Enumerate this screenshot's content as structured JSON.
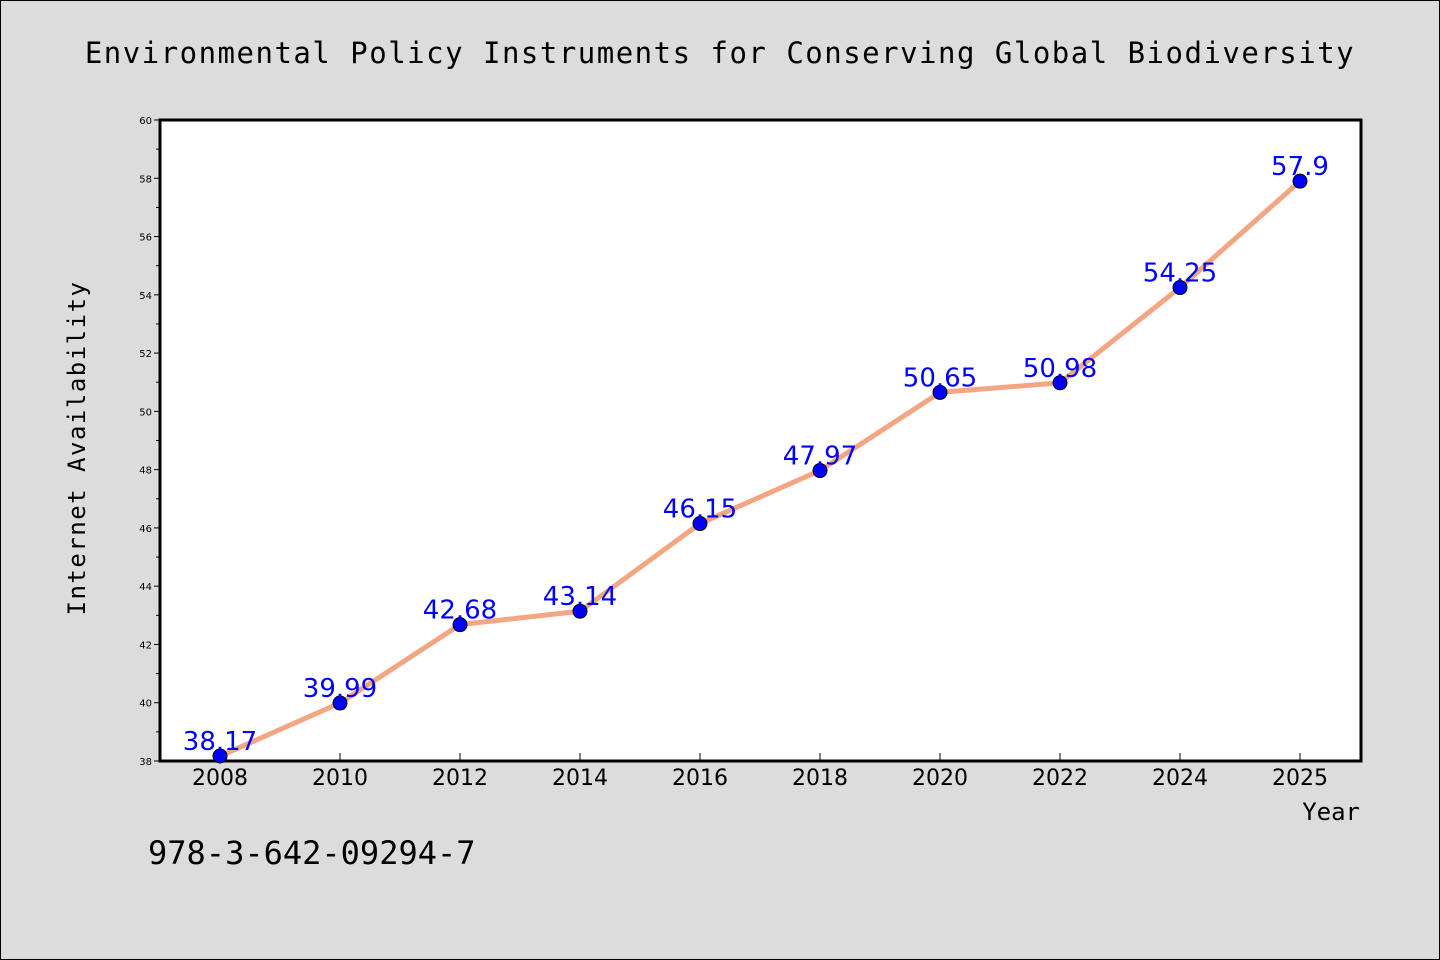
{
  "chart_data": {
    "type": "line",
    "title": "Environmental Policy Instruments for Conserving Global Biodiversity",
    "xlabel": "Year",
    "ylabel": "Internet Availability",
    "categories": [
      "2008",
      "2010",
      "2012",
      "2014",
      "2016",
      "2018",
      "2020",
      "2022",
      "2024",
      "2025"
    ],
    "values": [
      38.17,
      39.99,
      42.68,
      43.14,
      46.15,
      47.97,
      50.65,
      50.98,
      54.25,
      57.9
    ],
    "value_labels": [
      "38.17",
      "39.99",
      "42.68",
      "43.14",
      "46.15",
      "47.97",
      "50.65",
      "50.98",
      "54.25",
      "57.9"
    ],
    "ylim": [
      38,
      60
    ],
    "yticks": [
      "38",
      "40",
      "42",
      "44",
      "46",
      "48",
      "50",
      "52",
      "54",
      "56",
      "58",
      "60"
    ],
    "grid": false,
    "legend": "none",
    "colors": {
      "line": "#f4a582",
      "marker": "#0000ff",
      "value_label": "#0000ff",
      "background": "#dcdcdc",
      "plot_area": "#ffffff"
    }
  },
  "footer": {
    "isbn": "978-3-642-09294-7"
  }
}
